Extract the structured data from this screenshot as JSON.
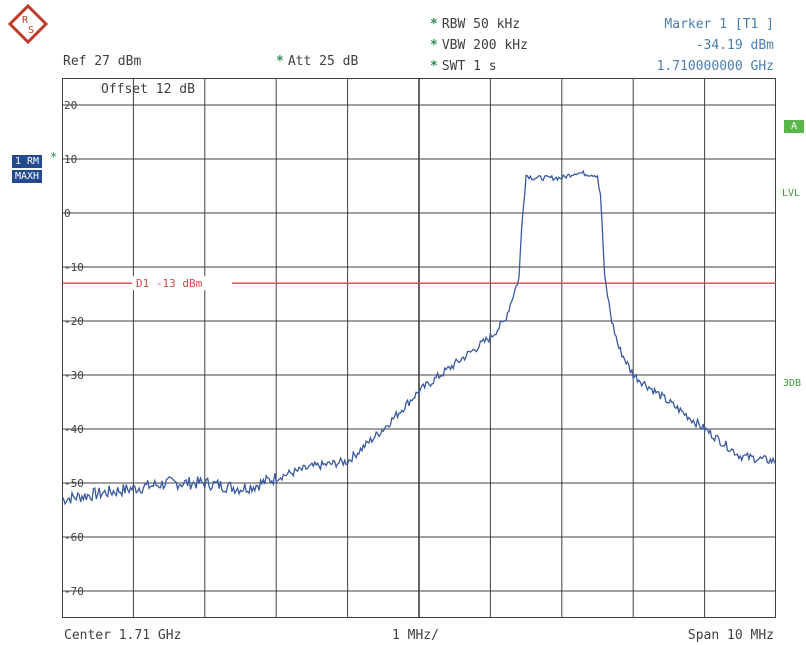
{
  "logo": {
    "text": "R&S",
    "letters": [
      "R",
      "S"
    ]
  },
  "settings": {
    "rbw": "RBW  50 kHz",
    "vbw": "VBW  200 kHz",
    "swt": "SWT  1 s",
    "att": "Att   25 dB",
    "ref": "Ref   27 dBm",
    "offset": "Offset   12 dB"
  },
  "marker": {
    "title": "Marker 1 [T1 ]",
    "level": "-34.19 dBm",
    "frequency": "1.710000000 GHz"
  },
  "trace_badges": {
    "rm": "1 RM",
    "maxh": "MAXH"
  },
  "right_labels": {
    "a": "A",
    "lvl": "LVL",
    "3db": "3DB"
  },
  "footer": {
    "center": "Center  1.71 GHz",
    "div": "1 MHz/",
    "span": "Span  10 MHz"
  },
  "colors": {
    "trace": "#3a5aa0",
    "limit_line": "#d24848",
    "grid": "#404040",
    "settings_star": "#2e8b57",
    "marker_text": "#4a7fb0"
  },
  "chart_data": {
    "type": "line",
    "title": "",
    "xlabel": "",
    "ylabel": "",
    "x_center_ghz": 1.71,
    "span_mhz": 10,
    "x_unit": "MHz offset from center",
    "xlim": [
      -5,
      5
    ],
    "ylim": [
      -75,
      25
    ],
    "y_ticks": [
      20,
      10,
      0,
      -10,
      -20,
      -30,
      -40,
      -50,
      -60,
      -70
    ],
    "y_tick_labels": [
      "20",
      "10",
      "0",
      "-10",
      "-20",
      "-30",
      "-40",
      "-50",
      "-60",
      "-70"
    ],
    "grid": true,
    "limit_line": {
      "label": "D1 -13 dBm",
      "value": -13
    },
    "series": [
      {
        "x": [
          -5.0,
          -4.5,
          -4.0,
          -3.5,
          -3.0,
          -2.5,
          -2.3,
          -2.0,
          -1.5,
          -1.0,
          -0.5,
          0.0,
          0.5,
          1.0,
          1.2,
          1.4,
          1.45,
          1.5,
          1.6,
          1.8,
          2.0,
          2.2,
          2.5,
          2.55,
          2.6,
          2.7,
          2.8,
          3.0,
          3.5,
          4.0,
          4.5,
          5.0
        ],
        "y": [
          -53,
          -52,
          -51,
          -50,
          -50,
          -51,
          -50.5,
          -49,
          -47,
          -46,
          -40,
          -33,
          -28,
          -23,
          -20,
          -12,
          0,
          7,
          6.5,
          6.5,
          6.5,
          7.5,
          7,
          2,
          -12,
          -20,
          -25,
          -30,
          -35,
          -40,
          -45,
          -46
        ]
      }
    ]
  }
}
